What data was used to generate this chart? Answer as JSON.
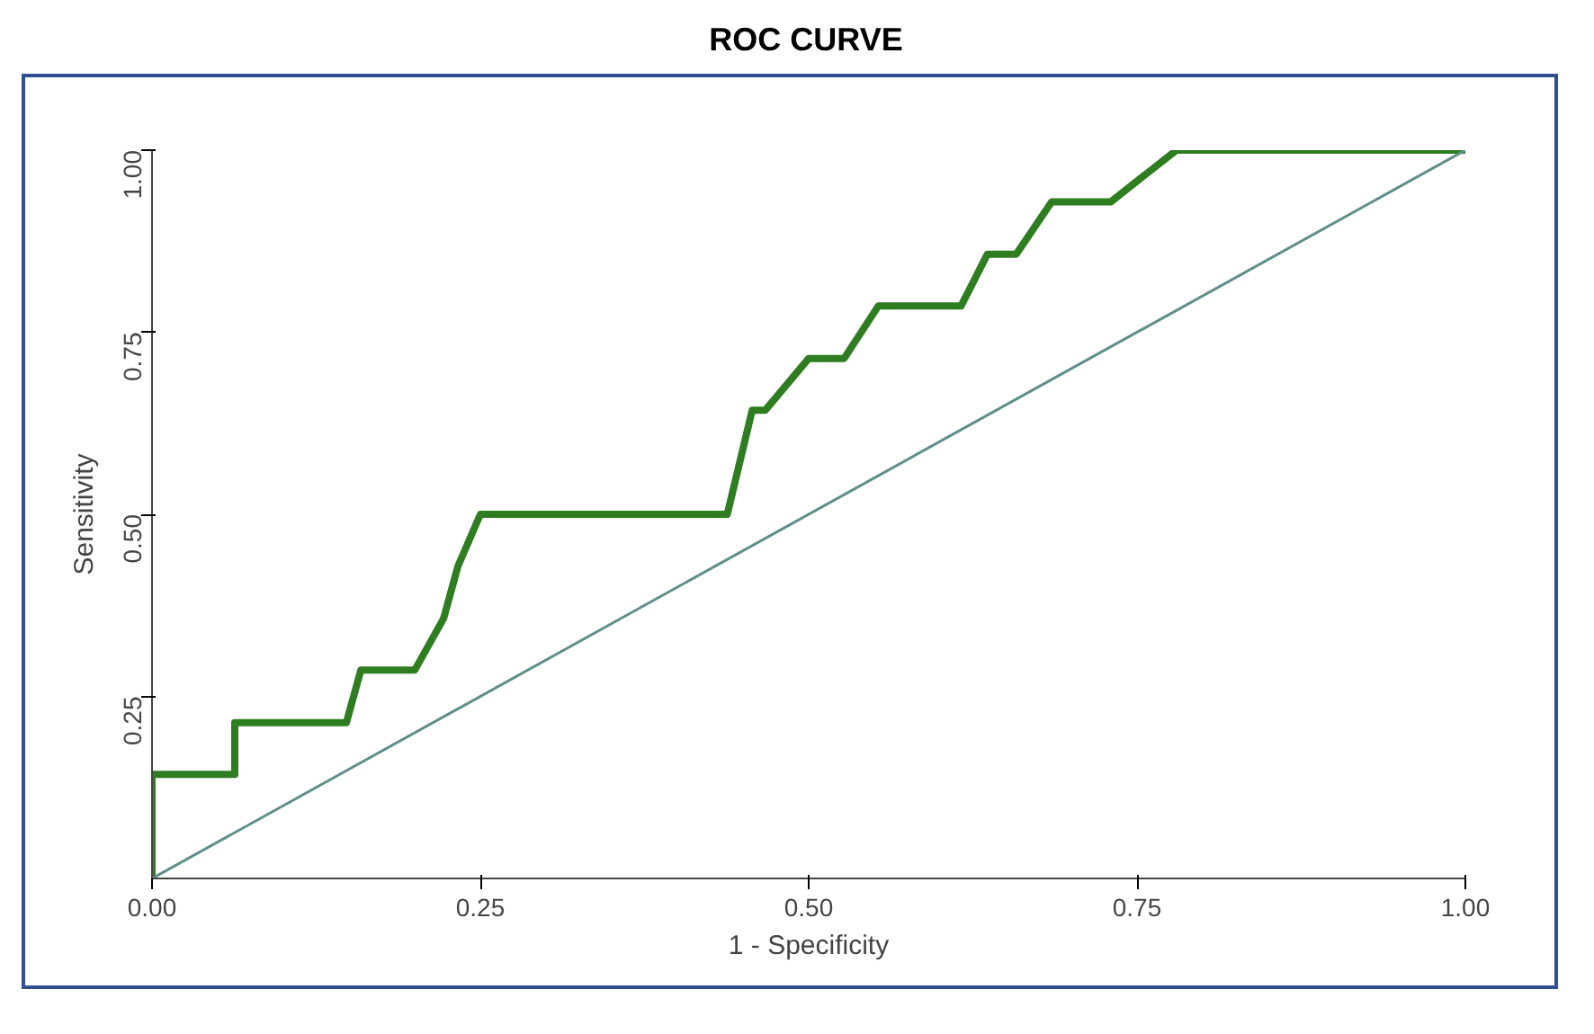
{
  "chart_data": {
    "type": "line",
    "title": "ROC CURVE",
    "xlabel": "1 - Specificity",
    "ylabel": "Sensitivity",
    "xlim": [
      0,
      1
    ],
    "ylim": [
      0,
      1
    ],
    "xticks": [
      {
        "value": 0,
        "label": "0.00"
      },
      {
        "value": 0.25,
        "label": "0.25"
      },
      {
        "value": 0.5,
        "label": "0.50"
      },
      {
        "value": 0.75,
        "label": "0.75"
      },
      {
        "value": 1,
        "label": "1.00"
      }
    ],
    "yticks": [
      {
        "value": 0.25,
        "label": "0.25"
      },
      {
        "value": 0.5,
        "label": "0.50"
      },
      {
        "value": 0.75,
        "label": "0.75"
      },
      {
        "value": 1,
        "label": "1.00"
      }
    ],
    "grid": false,
    "series": [
      {
        "color": "#2e7d20",
        "x": [
          0,
          0,
          0.063,
          0.063,
          0.148,
          0.159,
          0.2,
          0.222,
          0.233,
          0.25,
          0.438,
          0.457,
          0.467,
          0.5,
          0.527,
          0.553,
          0.616,
          0.636,
          0.658,
          0.685,
          0.73,
          0.78,
          1
        ],
        "values": [
          0,
          0.143,
          0.143,
          0.214,
          0.214,
          0.286,
          0.286,
          0.357,
          0.429,
          0.5,
          0.5,
          0.643,
          0.643,
          0.714,
          0.714,
          0.786,
          0.786,
          0.857,
          0.857,
          0.929,
          0.929,
          1,
          1
        ]
      },
      {
        "color": "#5f8f8a",
        "x": [
          0,
          1
        ],
        "values": [
          0,
          1
        ]
      }
    ]
  }
}
